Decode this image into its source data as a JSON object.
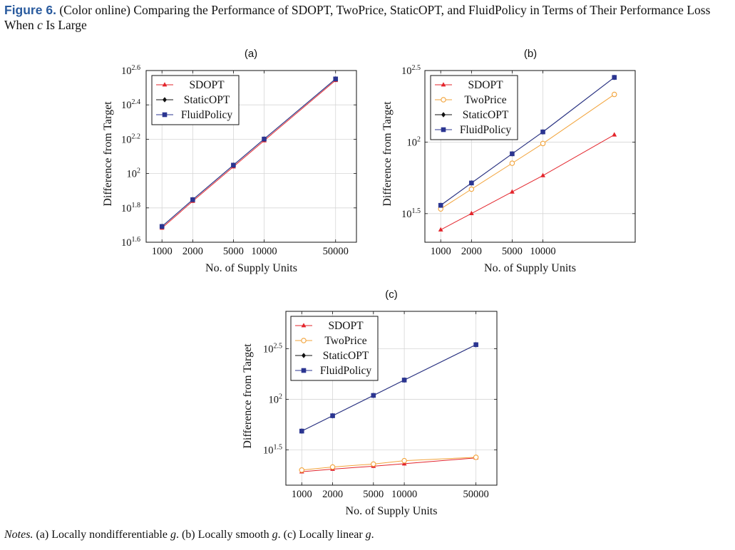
{
  "caption": {
    "label": "Figure 6.",
    "text": " (Color online) Comparing the Performance of SDOPT, TwoPrice, StaticOPT, and FluidPolicy in Terms of Their Performance Loss When",
    "c_symbol": "c",
    "text_end": " Is Large"
  },
  "notes": {
    "prefix": "Notes.",
    "a_text": " (a) Locally nondifferentiable ",
    "b_text": ". (b) Locally smooth ",
    "c_text": ". (c) Locally linear ",
    "g_symbol": "g",
    "end": "."
  },
  "colors": {
    "SDOPT": "#e3242b",
    "TwoPrice": "#f2a33a",
    "StaticOPT": "#111111",
    "FluidPolicy": "#2b3591"
  },
  "markers": {
    "SDOPT": "triangle",
    "TwoPrice": "circle",
    "StaticOPT": "diamond",
    "FluidPolicy": "square"
  },
  "chart_data": [
    {
      "type": "line",
      "panel": "(a)",
      "xlabel": "No. of Supply Units",
      "ylabel": "Difference from Target",
      "x_scale": "log",
      "y_scale": "log",
      "xlim": [
        700,
        80000
      ],
      "ylim_log10": [
        1.6,
        2.6
      ],
      "x_ticks": [
        1000,
        2000,
        5000,
        10000,
        50000
      ],
      "x_tick_labels": [
        "1000",
        "2000",
        "5000",
        "10000",
        "50000"
      ],
      "y_ticks_log10": [
        1.6,
        1.8,
        2.0,
        2.2,
        2.4,
        2.6
      ],
      "y_tick_labels": [
        [
          "10",
          "1.6"
        ],
        [
          "10",
          "1.8"
        ],
        [
          "10",
          "2"
        ],
        [
          "10",
          "2.2"
        ],
        [
          "10",
          "2.4"
        ],
        [
          "10",
          "2.6"
        ]
      ],
      "grid": true,
      "legend_position": "top-left",
      "x": [
        1000,
        2000,
        5000,
        10000,
        50000
      ],
      "series": [
        {
          "name": "SDOPT",
          "log10_values": [
            1.683,
            1.839,
            2.04,
            2.192,
            2.543
          ]
        },
        {
          "name": "StaticOPT",
          "log10_values": [
            1.692,
            1.848,
            2.049,
            2.201,
            2.551
          ]
        },
        {
          "name": "FluidPolicy",
          "log10_values": [
            1.692,
            1.848,
            2.049,
            2.201,
            2.551
          ]
        }
      ]
    },
    {
      "type": "line",
      "panel": "(b)",
      "xlabel": "No. of Supply Units",
      "ylabel": "Difference from Target",
      "x_scale": "log",
      "y_scale": "log",
      "xlim": [
        700,
        80000
      ],
      "ylim_log10": [
        1.3,
        2.5
      ],
      "x_ticks": [
        1000,
        2000,
        5000,
        10000
      ],
      "x_tick_labels": [
        "1000",
        "2000",
        "5000",
        "10000"
      ],
      "y_ticks_log10": [
        1.5,
        2.0,
        2.5
      ],
      "y_tick_labels": [
        [
          "10",
          "1.5"
        ],
        [
          "10",
          "2"
        ],
        [
          "10",
          "2.5"
        ]
      ],
      "grid": true,
      "legend_position": "top-left",
      "x": [
        1000,
        2000,
        5000,
        10000,
        50000
      ],
      "series": [
        {
          "name": "SDOPT",
          "log10_values": [
            1.387,
            1.501,
            1.652,
            1.766,
            2.051
          ]
        },
        {
          "name": "TwoPrice",
          "log10_values": [
            1.533,
            1.671,
            1.852,
            1.99,
            2.333
          ]
        },
        {
          "name": "StaticOPT",
          "log10_values": [
            1.558,
            1.714,
            1.918,
            2.071,
            2.452
          ]
        },
        {
          "name": "FluidPolicy",
          "log10_values": [
            1.558,
            1.714,
            1.918,
            2.071,
            2.452
          ]
        }
      ]
    },
    {
      "type": "line",
      "panel": "(c)",
      "xlabel": "No. of Supply Units",
      "ylabel": "Difference from Target",
      "x_scale": "log",
      "y_scale": "log",
      "xlim": [
        700,
        80000
      ],
      "ylim_log10": [
        1.15,
        2.87
      ],
      "x_ticks": [
        1000,
        2000,
        5000,
        10000,
        50000
      ],
      "x_tick_labels": [
        "1000",
        "2000",
        "5000",
        "10000",
        "50000"
      ],
      "y_ticks_log10": [
        1.5,
        2.0,
        2.5
      ],
      "y_tick_labels": [
        [
          "10",
          "1.5"
        ],
        [
          "10",
          "2"
        ],
        [
          "10",
          "2.5"
        ]
      ],
      "grid": true,
      "legend_position": "top-left",
      "x": [
        1000,
        2000,
        5000,
        10000,
        50000
      ],
      "series": [
        {
          "name": "SDOPT",
          "log10_values": [
            1.283,
            1.309,
            1.338,
            1.362,
            1.42
          ]
        },
        {
          "name": "TwoPrice",
          "log10_values": [
            1.3,
            1.33,
            1.359,
            1.392,
            1.426
          ]
        },
        {
          "name": "StaticOPT",
          "log10_values": [
            1.685,
            1.837,
            2.038,
            2.19,
            2.54
          ]
        },
        {
          "name": "FluidPolicy",
          "log10_values": [
            1.685,
            1.837,
            2.038,
            2.19,
            2.54
          ]
        }
      ]
    }
  ]
}
